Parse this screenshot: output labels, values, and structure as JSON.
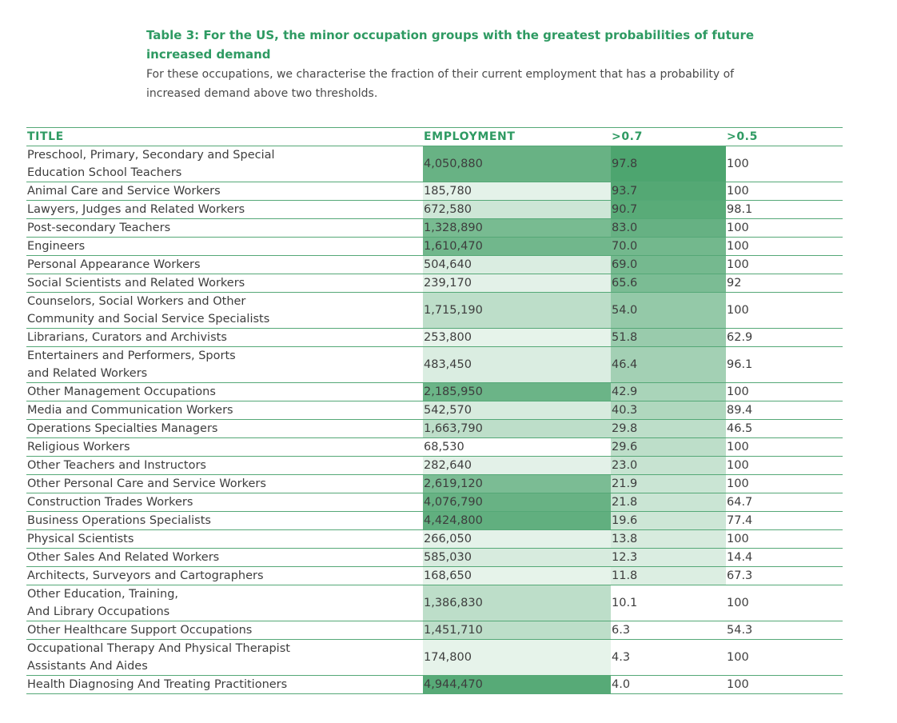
{
  "header": {
    "title": "Table 3: For the US, the minor occupation groups with the greatest probabilities of future increased demand",
    "subtitle": "For these occupations, we characterise the fraction of their current employment that has a probability of increased demand above two thresholds."
  },
  "table": {
    "columns": [
      "TITLE",
      "EMPLOYMENT",
      ">0.7",
      ">0.5"
    ],
    "rows": [
      {
        "title_lines": [
          "Preschool, Primary, Secondary and Special",
          "Education School Teachers"
        ],
        "employment": "4,050,880",
        "p07": "97.8",
        "p05": "100",
        "emp_shade": 0.82,
        "p07_shade": 0.98,
        "p05_shade": 0
      },
      {
        "title_lines": [
          "Animal Care and Service Workers"
        ],
        "employment": "185,780",
        "p07": "93.7",
        "p05": "100",
        "emp_shade": 0.06,
        "p07_shade": 0.94,
        "p05_shade": 0
      },
      {
        "title_lines": [
          "Lawyers, Judges and Related Workers"
        ],
        "employment": "672,580",
        "p07": "90.7",
        "p05": "98.1",
        "emp_shade": 0.2,
        "p07_shade": 0.91,
        "p05_shade": 0
      },
      {
        "title_lines": [
          "Post-secondary Teachers"
        ],
        "employment": "1,328,890",
        "p07": "83.0",
        "p05": "100",
        "emp_shade": 0.72,
        "p07_shade": 0.83,
        "p05_shade": 0
      },
      {
        "title_lines": [
          "Engineers"
        ],
        "employment": "1,610,470",
        "p07": "70.0",
        "p05": "100",
        "emp_shade": 0.76,
        "p07_shade": 0.75,
        "p05_shade": 0
      },
      {
        "title_lines": [
          "Personal Appearance Workers"
        ],
        "employment": "504,640",
        "p07": "69.0",
        "p05": "100",
        "emp_shade": 0.12,
        "p07_shade": 0.74,
        "p05_shade": 0
      },
      {
        "title_lines": [
          "Social Scientists and Related Workers"
        ],
        "employment": "239,170",
        "p07": "65.6",
        "p05": "92",
        "emp_shade": 0.07,
        "p07_shade": 0.7,
        "p05_shade": 0
      },
      {
        "title_lines": [
          "Counselors, Social Workers and Other",
          "Community and Social Service Specialists"
        ],
        "employment": "1,715,190",
        "p07": "54.0",
        "p05": "100",
        "emp_shade": 0.3,
        "p07_shade": 0.55,
        "p05_shade": 0
      },
      {
        "title_lines": [
          "Librarians, Curators and Archivists"
        ],
        "employment": "253,800",
        "p07": "51.8",
        "p05": "62.9",
        "emp_shade": 0.05,
        "p07_shade": 0.52,
        "p05_shade": 0
      },
      {
        "title_lines": [
          "Entertainers and Performers, Sports",
          "and Related Workers"
        ],
        "employment": "483,450",
        "p07": "46.4",
        "p05": "96.1",
        "emp_shade": 0.12,
        "p07_shade": 0.46,
        "p05_shade": 0
      },
      {
        "title_lines": [
          "Other Management Occupations"
        ],
        "employment": "2,185,950",
        "p07": "42.9",
        "p05": "100",
        "emp_shade": 0.8,
        "p07_shade": 0.42,
        "p05_shade": 0
      },
      {
        "title_lines": [
          "Media and Communication Workers"
        ],
        "employment": "542,570",
        "p07": "40.3",
        "p05": "89.4",
        "emp_shade": 0.14,
        "p07_shade": 0.38,
        "p05_shade": 0
      },
      {
        "title_lines": [
          "Operations Specialties Managers"
        ],
        "employment": "1,663,790",
        "p07": "29.8",
        "p05": "46.5",
        "emp_shade": 0.3,
        "p07_shade": 0.3,
        "p05_shade": 0
      },
      {
        "title_lines": [
          "Religious Workers"
        ],
        "employment": "68,530",
        "p07": "29.6",
        "p05": "100",
        "emp_shade": 0.0,
        "p07_shade": 0.3,
        "p05_shade": 0
      },
      {
        "title_lines": [
          "Other Teachers and Instructors"
        ],
        "employment": "282,640",
        "p07": "23.0",
        "p05": "100",
        "emp_shade": 0.07,
        "p07_shade": 0.24,
        "p05_shade": 0
      },
      {
        "title_lines": [
          "Other Personal Care and Service Workers"
        ],
        "employment": "2,619,120",
        "p07": "21.9",
        "p05": "100",
        "emp_shade": 0.7,
        "p07_shade": 0.22,
        "p05_shade": 0
      },
      {
        "title_lines": [
          "Construction Trades Workers"
        ],
        "employment": "4,076,790",
        "p07": "21.8",
        "p05": "64.7",
        "emp_shade": 0.82,
        "p07_shade": 0.22,
        "p05_shade": 0
      },
      {
        "title_lines": [
          "Business Operations Specialists"
        ],
        "employment": "4,424,800",
        "p07": "19.6",
        "p05": "77.4",
        "emp_shade": 0.86,
        "p07_shade": 0.2,
        "p05_shade": 0
      },
      {
        "title_lines": [
          "Physical Scientists"
        ],
        "employment": "266,050",
        "p07": "13.8",
        "p05": "100",
        "emp_shade": 0.06,
        "p07_shade": 0.14,
        "p05_shade": 0
      },
      {
        "title_lines": [
          "Other Sales And Related Workers"
        ],
        "employment": "585,030",
        "p07": "12.3",
        "p05": "14.4",
        "emp_shade": 0.14,
        "p07_shade": 0.12,
        "p05_shade": 0
      },
      {
        "title_lines": [
          "Architects, Surveyors and Cartographers"
        ],
        "employment": "168,650",
        "p07": "11.8",
        "p05": "67.3",
        "emp_shade": 0.05,
        "p07_shade": 0.11,
        "p05_shade": 0
      },
      {
        "title_lines": [
          "Other Education, Training,",
          "And Library Occupations"
        ],
        "employment": "1,386,830",
        "p07": "10.1",
        "p05": "100",
        "emp_shade": 0.3,
        "p07_shade": 0.0,
        "p05_shade": 0
      },
      {
        "title_lines": [
          "Other Healthcare Support Occupations"
        ],
        "employment": "1,451,710",
        "p07": "6.3",
        "p05": "54.3",
        "emp_shade": 0.3,
        "p07_shade": 0.0,
        "p05_shade": 0
      },
      {
        "title_lines": [
          "Occupational Therapy And Physical Therapist",
          "Assistants And Aides"
        ],
        "employment": "174,800",
        "p07": "4.3",
        "p05": "100",
        "emp_shade": 0.05,
        "p07_shade": 0.0,
        "p05_shade": 0
      },
      {
        "title_lines": [
          "Health Diagnosing And Treating Practitioners"
        ],
        "employment": "4,944,470",
        "p07": "4.0",
        "p05": "100",
        "emp_shade": 0.92,
        "p07_shade": 0.0,
        "p05_shade": 0
      }
    ]
  },
  "colors": {
    "accent": "#2e9a62",
    "rule": "#55a877",
    "shade_dark": "#4aa36c",
    "shade_light": "#eef7f1"
  }
}
